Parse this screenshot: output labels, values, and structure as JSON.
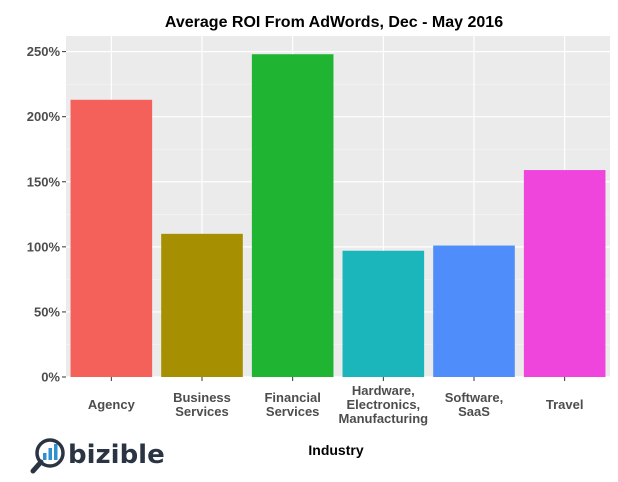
{
  "brand": {
    "name": "bizible",
    "primary_color": "#2a3442",
    "accent_color": "#2f8fd0"
  },
  "chart_data": {
    "type": "bar",
    "title": "Average ROI From AdWords, Dec - May 2016",
    "xlabel": "Industry",
    "ylabel": "",
    "categories": [
      [
        "Agency"
      ],
      [
        "Business",
        "Services"
      ],
      [
        "Financial",
        "Services"
      ],
      [
        "Hardware,",
        "Electronics,",
        "Manufacturing"
      ],
      [
        "Software,",
        "SaaS"
      ],
      [
        "Travel"
      ]
    ],
    "values": [
      213,
      110,
      248,
      97,
      101,
      159
    ],
    "colors": [
      "#f3615a",
      "#a68f00",
      "#1fb432",
      "#1ab6bb",
      "#4f8efa",
      "#ef45dd"
    ],
    "ylim": [
      0,
      262
    ],
    "yticks": [
      0,
      50,
      100,
      150,
      200,
      250
    ],
    "ytick_labels": [
      "0%",
      "50%",
      "100%",
      "150%",
      "200%",
      "250%"
    ],
    "grid": true,
    "panel_background": "#ebebeb",
    "legend": "none"
  }
}
